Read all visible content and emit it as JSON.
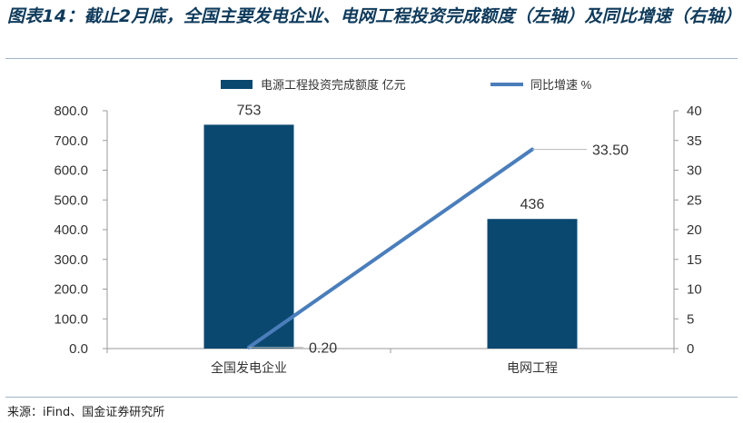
{
  "header": {
    "title": "图表14：截止2月底，全国主要发电企业、电网工程投资完成额度（左轴）及同比增速（右轴）"
  },
  "footer": {
    "source": "来源：iFind、国金证券研究所"
  },
  "colors": {
    "bar": "#0b4870",
    "line": "#4a7ebb",
    "title": "#0e3a5b"
  },
  "chart_data": {
    "type": "bar",
    "categories": [
      "全国发电企业",
      "电网工程"
    ],
    "series": [
      {
        "name": "电源工程投资完成额度 亿元",
        "kind": "bar",
        "axis": "left",
        "values": [
          753,
          436
        ],
        "labels": [
          "753",
          "436"
        ]
      },
      {
        "name": "同比增速 %",
        "kind": "line",
        "axis": "right",
        "values": [
          0.2,
          33.5
        ],
        "labels": [
          "0.20",
          "33.50"
        ]
      }
    ],
    "y_left": {
      "ylim": [
        0,
        800
      ],
      "ticks": [
        "0.0",
        "100.0",
        "200.0",
        "300.0",
        "400.0",
        "500.0",
        "600.0",
        "700.0",
        "800.0"
      ]
    },
    "y_right": {
      "ylim": [
        0,
        40
      ],
      "ticks": [
        "0",
        "5",
        "10",
        "15",
        "20",
        "25",
        "30",
        "35",
        "40"
      ]
    },
    "legend": "top",
    "grid": false
  }
}
